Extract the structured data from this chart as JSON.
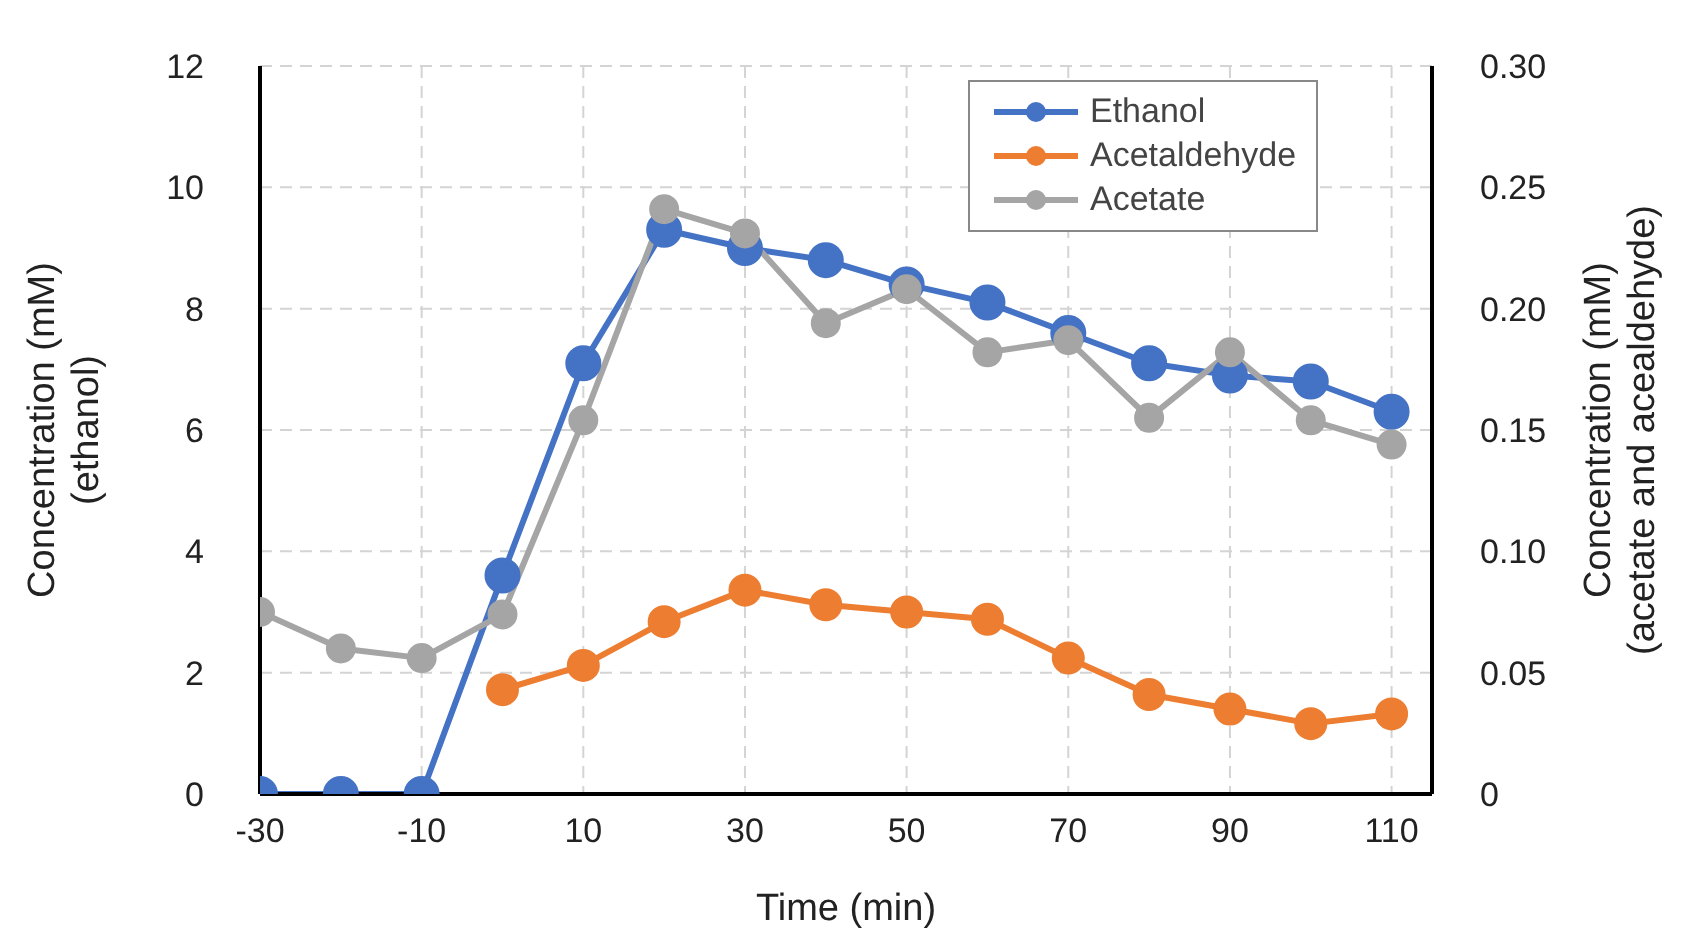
{
  "chart_data": {
    "type": "line",
    "xlabel": "Time (min)",
    "ylabel": "Concentration (mM)\n(ethanol)",
    "y2label": "Concentration (mM)\n(acetate and acealdehyde)",
    "x": [
      -30,
      -20,
      -10,
      0,
      10,
      20,
      30,
      40,
      50,
      60,
      70,
      80,
      90,
      100,
      110
    ],
    "series": [
      {
        "name": "Ethanol",
        "color": "#4472c4",
        "values": [
          0,
          0,
          0,
          3.6,
          7.1,
          9.3,
          9.0,
          8.8,
          8.4,
          8.1,
          7.6,
          7.1,
          6.9,
          6.8,
          6.3
        ]
      },
      {
        "name": "Acetaldehyde",
        "color": "#ed7d31",
        "axis": "y2",
        "values": [
          null,
          null,
          null,
          0.043,
          0.053,
          0.071,
          0.084,
          0.078,
          0.075,
          0.072,
          0.056,
          0.041,
          0.035,
          0.029,
          0.033
        ]
      },
      {
        "name": "Acetate",
        "color": "#a5a5a5",
        "axis": "y2",
        "values": [
          0.075,
          0.06,
          0.056,
          0.074,
          0.154,
          0.241,
          0.231,
          0.194,
          0.208,
          0.182,
          0.187,
          0.155,
          0.182,
          0.154,
          0.144
        ]
      }
    ],
    "xlim": [
      -30,
      115
    ],
    "xticks": [
      -30,
      -10,
      10,
      30,
      50,
      70,
      90,
      110
    ],
    "ylim": [
      0,
      12
    ],
    "yticks": [
      0,
      2,
      4,
      6,
      8,
      10,
      12
    ],
    "y2lim": [
      0,
      0.3
    ],
    "y2ticks": [
      0,
      {
        "value": 0.05,
        "label": "0.05"
      },
      {
        "value": 0.1,
        "label": "0.10"
      },
      {
        "value": 0.15,
        "label": "0.15"
      },
      {
        "value": 0.2,
        "label": "0.20"
      },
      {
        "value": 0.25,
        "label": "0.25"
      },
      {
        "value": 0.3,
        "label": "0.30"
      }
    ],
    "grid": true,
    "legend": "top right",
    "marker": "circle",
    "line_style": "solid"
  }
}
